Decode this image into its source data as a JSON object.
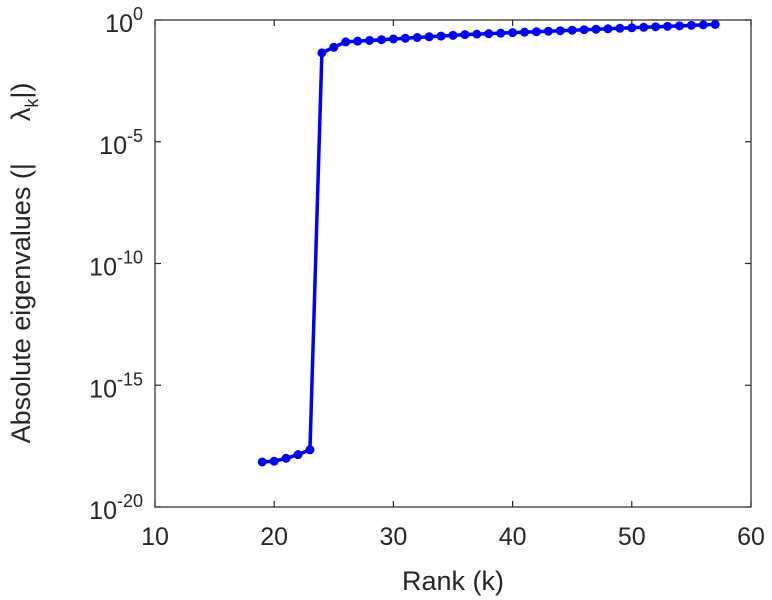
{
  "chart_data": {
    "type": "line",
    "xlabel": "Rank (k)",
    "ylabel_main": "Absolute eigenvalues (|",
    "ylabel_symbol": "λ",
    "ylabel_sub": "k",
    "ylabel_end": "|)",
    "x_ticks": [
      "10",
      "20",
      "30",
      "40",
      "50",
      "60"
    ],
    "y_tick_base": "10",
    "y_tick_exponents": [
      "0",
      "-5",
      "-10",
      "-15",
      "-20"
    ],
    "xlim": [
      10,
      60
    ],
    "ylim_log10": [
      -20,
      0
    ],
    "yscale": "log",
    "grid": false,
    "series": [
      {
        "color": "#0000ff",
        "marker": "circle",
        "x": [
          19,
          20,
          21,
          22,
          23,
          24,
          25,
          26,
          27,
          28,
          29,
          30,
          31,
          32,
          33,
          34,
          35,
          36,
          37,
          38,
          39,
          40,
          41,
          42,
          43,
          44,
          45,
          46,
          47,
          48,
          49,
          50,
          51,
          52,
          53,
          54,
          55,
          56,
          57
        ],
        "log10_y": [
          -18.15,
          -18.12,
          -18.0,
          -17.85,
          -17.65,
          -1.35,
          -1.12,
          -0.9,
          -0.87,
          -0.84,
          -0.81,
          -0.78,
          -0.75,
          -0.72,
          -0.69,
          -0.66,
          -0.63,
          -0.6,
          -0.58,
          -0.56,
          -0.54,
          -0.52,
          -0.5,
          -0.48,
          -0.46,
          -0.44,
          -0.42,
          -0.4,
          -0.38,
          -0.36,
          -0.34,
          -0.32,
          -0.3,
          -0.28,
          -0.26,
          -0.24,
          -0.22,
          -0.2,
          -0.18
        ]
      }
    ]
  }
}
